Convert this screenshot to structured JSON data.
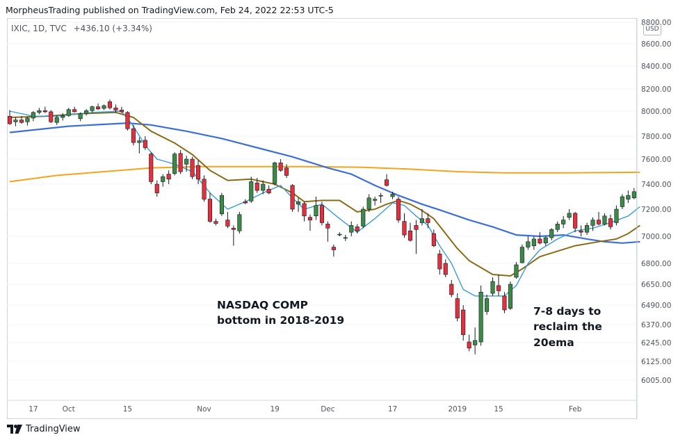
{
  "header": {
    "publisher_line": "MorpheusTrading published on TradingView.com, Feb 24, 2022 22:53 UTC-5"
  },
  "legend": {
    "symbol": "IXIC, 1D, TVC",
    "change": "+436.10 (+3.34%)",
    "currency_badge": "USD"
  },
  "annotations": {
    "left_note": "NASDAQ COMP\nbottom in 2018-2019",
    "right_note": "7-8 days to\nreclaim the\n20ema"
  },
  "footer": {
    "brand": "TradingView"
  },
  "colors": {
    "up_candle": "#3d8a47",
    "down_candle": "#e2303c",
    "ema_fast": "#3a9bd9",
    "ema_20": "#8a6b14",
    "ma_50": "#3c6fd6",
    "ma_200": "#f7a21b"
  },
  "chart_data": {
    "type": "candlestick",
    "price_axis": {
      "ticks": [
        6005,
        6125,
        6245,
        6370,
        6490,
        6650,
        6800,
        7000,
        7200,
        7400,
        7600,
        7800,
        8000,
        8200,
        8400,
        8600,
        8800
      ],
      "tick_labels": [
        "6005.00",
        "6125.00",
        "6245.00",
        "6370.00",
        "6490.00",
        "6650.00",
        "6800.00",
        "7000.00",
        "7200.00",
        "7400.00",
        "7600.00",
        "7800.00",
        "8000.00",
        "8200.00",
        "8400.00",
        "8600.00",
        "8800.00"
      ]
    },
    "time_axis": {
      "labels": [
        {
          "text": "17",
          "bar": 4
        },
        {
          "text": "Oct",
          "bar": 10
        },
        {
          "text": "15",
          "bar": 20
        },
        {
          "text": "Nov",
          "bar": 33
        },
        {
          "text": "19",
          "bar": 45
        },
        {
          "text": "Dec",
          "bar": 54
        },
        {
          "text": "17",
          "bar": 65
        },
        {
          "text": "2019",
          "bar": 76
        },
        {
          "text": "15",
          "bar": 83
        },
        {
          "text": "Feb",
          "bar": 96
        }
      ]
    },
    "candles": [
      {
        "o": 7960,
        "h": 8010,
        "l": 7890,
        "c": 7900
      },
      {
        "o": 7915,
        "h": 7950,
        "l": 7880,
        "c": 7930
      },
      {
        "o": 7930,
        "h": 7960,
        "l": 7900,
        "c": 7910
      },
      {
        "o": 7915,
        "h": 7955,
        "l": 7885,
        "c": 7945
      },
      {
        "o": 7945,
        "h": 8000,
        "l": 7920,
        "c": 7990
      },
      {
        "o": 7990,
        "h": 8030,
        "l": 7975,
        "c": 8005
      },
      {
        "o": 8005,
        "h": 8040,
        "l": 7985,
        "c": 7995
      },
      {
        "o": 7995,
        "h": 8010,
        "l": 7905,
        "c": 7915
      },
      {
        "o": 7910,
        "h": 7965,
        "l": 7890,
        "c": 7950
      },
      {
        "o": 7950,
        "h": 7985,
        "l": 7925,
        "c": 7965
      },
      {
        "o": 7965,
        "h": 8030,
        "l": 7955,
        "c": 8015
      },
      {
        "o": 8015,
        "h": 8040,
        "l": 7990,
        "c": 7995
      },
      {
        "o": 7940,
        "h": 7990,
        "l": 7920,
        "c": 7980
      },
      {
        "o": 7980,
        "h": 8020,
        "l": 7965,
        "c": 8005
      },
      {
        "o": 8005,
        "h": 8050,
        "l": 7990,
        "c": 8040
      },
      {
        "o": 8040,
        "h": 8070,
        "l": 8010,
        "c": 8020
      },
      {
        "o": 8025,
        "h": 8060,
        "l": 8010,
        "c": 8050
      },
      {
        "o": 8085,
        "h": 8105,
        "l": 8015,
        "c": 8030
      },
      {
        "o": 8030,
        "h": 8060,
        "l": 7990,
        "c": 8010
      },
      {
        "o": 8010,
        "h": 8040,
        "l": 7985,
        "c": 7995
      },
      {
        "o": 7990,
        "h": 8000,
        "l": 7845,
        "c": 7860
      },
      {
        "o": 7860,
        "h": 7890,
        "l": 7720,
        "c": 7745
      },
      {
        "o": 7745,
        "h": 7790,
        "l": 7650,
        "c": 7760
      },
      {
        "o": 7765,
        "h": 7800,
        "l": 7680,
        "c": 7700
      },
      {
        "o": 7645,
        "h": 7660,
        "l": 7400,
        "c": 7420
      },
      {
        "o": 7400,
        "h": 7430,
        "l": 7300,
        "c": 7330
      },
      {
        "o": 7420,
        "h": 7480,
        "l": 7380,
        "c": 7460
      },
      {
        "o": 7480,
        "h": 7510,
        "l": 7400,
        "c": 7440
      },
      {
        "o": 7485,
        "h": 7660,
        "l": 7470,
        "c": 7645
      },
      {
        "o": 7650,
        "h": 7680,
        "l": 7480,
        "c": 7500
      },
      {
        "o": 7560,
        "h": 7630,
        "l": 7500,
        "c": 7600
      },
      {
        "o": 7600,
        "h": 7620,
        "l": 7440,
        "c": 7460
      },
      {
        "o": 7550,
        "h": 7590,
        "l": 7400,
        "c": 7440
      },
      {
        "o": 7440,
        "h": 7470,
        "l": 7260,
        "c": 7280
      },
      {
        "o": 7280,
        "h": 7330,
        "l": 7100,
        "c": 7110
      },
      {
        "o": 7110,
        "h": 7130,
        "l": 7080,
        "c": 7095
      },
      {
        "o": 7165,
        "h": 7330,
        "l": 7150,
        "c": 7310
      },
      {
        "o": 7120,
        "h": 7180,
        "l": 7060,
        "c": 7075
      },
      {
        "o": 7060,
        "h": 7080,
        "l": 6930,
        "c": 7050
      },
      {
        "o": 7040,
        "h": 7180,
        "l": 7020,
        "c": 7160
      },
      {
        "o": 7260,
        "h": 7280,
        "l": 7240,
        "c": 7250
      },
      {
        "o": 7265,
        "h": 7460,
        "l": 7250,
        "c": 7420
      },
      {
        "o": 7410,
        "h": 7450,
        "l": 7330,
        "c": 7350
      },
      {
        "o": 7350,
        "h": 7430,
        "l": 7320,
        "c": 7400
      },
      {
        "o": 7360,
        "h": 7390,
        "l": 7320,
        "c": 7330
      },
      {
        "o": 7405,
        "h": 7580,
        "l": 7390,
        "c": 7570
      },
      {
        "o": 7570,
        "h": 7600,
        "l": 7500,
        "c": 7510
      },
      {
        "o": 7530,
        "h": 7560,
        "l": 7450,
        "c": 7470
      },
      {
        "o": 7390,
        "h": 7400,
        "l": 7180,
        "c": 7200
      },
      {
        "o": 7240,
        "h": 7290,
        "l": 7180,
        "c": 7260
      },
      {
        "o": 7245,
        "h": 7260,
        "l": 7110,
        "c": 7150
      },
      {
        "o": 7140,
        "h": 7160,
        "l": 7040,
        "c": 7120
      },
      {
        "o": 7150,
        "h": 7300,
        "l": 7120,
        "c": 7230
      },
      {
        "o": 7230,
        "h": 7260,
        "l": 7080,
        "c": 7100
      },
      {
        "o": 7090,
        "h": 7110,
        "l": 6960,
        "c": 7060
      },
      {
        "o": 6920,
        "h": 6940,
        "l": 6850,
        "c": 6900
      },
      {
        "o": 7010,
        "h": 7030,
        "l": 7000,
        "c": 7015
      },
      {
        "o": 6985,
        "h": 7010,
        "l": 6965,
        "c": 6990
      },
      {
        "o": 7030,
        "h": 7110,
        "l": 7000,
        "c": 7080
      },
      {
        "o": 7070,
        "h": 7090,
        "l": 7020,
        "c": 7040
      },
      {
        "o": 7075,
        "h": 7220,
        "l": 7060,
        "c": 7200
      },
      {
        "o": 7200,
        "h": 7320,
        "l": 7180,
        "c": 7290
      },
      {
        "o": 7270,
        "h": 7300,
        "l": 7230,
        "c": 7280
      },
      {
        "o": 7310,
        "h": 7330,
        "l": 7250,
        "c": 7310
      },
      {
        "o": 7435,
        "h": 7480,
        "l": 7380,
        "c": 7390
      },
      {
        "o": 7300,
        "h": 7340,
        "l": 7280,
        "c": 7320
      },
      {
        "o": 7280,
        "h": 7300,
        "l": 7100,
        "c": 7120
      },
      {
        "o": 7110,
        "h": 7170,
        "l": 6990,
        "c": 7010
      },
      {
        "o": 7040,
        "h": 7100,
        "l": 6960,
        "c": 6970
      },
      {
        "o": 7080,
        "h": 7120,
        "l": 6870,
        "c": 7050
      },
      {
        "o": 7100,
        "h": 7200,
        "l": 7080,
        "c": 7130
      },
      {
        "o": 7130,
        "h": 7170,
        "l": 7060,
        "c": 7100
      },
      {
        "o": 7020,
        "h": 7050,
        "l": 6920,
        "c": 6930
      },
      {
        "o": 6870,
        "h": 6900,
        "l": 6720,
        "c": 6760
      },
      {
        "o": 6800,
        "h": 6830,
        "l": 6700,
        "c": 6720
      },
      {
        "o": 6650,
        "h": 6680,
        "l": 6550,
        "c": 6570
      },
      {
        "o": 6540,
        "h": 6580,
        "l": 6390,
        "c": 6410
      },
      {
        "o": 6460,
        "h": 6490,
        "l": 6260,
        "c": 6300
      },
      {
        "o": 6250,
        "h": 6300,
        "l": 6190,
        "c": 6210
      },
      {
        "o": 6230,
        "h": 6350,
        "l": 6170,
        "c": 6260
      },
      {
        "o": 6250,
        "h": 6640,
        "l": 6225,
        "c": 6590
      },
      {
        "o": 6450,
        "h": 6570,
        "l": 6430,
        "c": 6540
      },
      {
        "o": 6580,
        "h": 6700,
        "l": 6560,
        "c": 6670
      },
      {
        "o": 6640,
        "h": 6720,
        "l": 6560,
        "c": 6600
      },
      {
        "o": 6560,
        "h": 6590,
        "l": 6440,
        "c": 6460
      },
      {
        "o": 6470,
        "h": 6670,
        "l": 6460,
        "c": 6650
      },
      {
        "o": 6700,
        "h": 6810,
        "l": 6690,
        "c": 6790
      },
      {
        "o": 6805,
        "h": 6940,
        "l": 6800,
        "c": 6920
      },
      {
        "o": 6920,
        "h": 7000,
        "l": 6900,
        "c": 6960
      },
      {
        "o": 6930,
        "h": 7000,
        "l": 6900,
        "c": 6980
      },
      {
        "o": 6980,
        "h": 7030,
        "l": 6940,
        "c": 6950
      },
      {
        "o": 6950,
        "h": 7000,
        "l": 6930,
        "c": 6990
      },
      {
        "o": 6990,
        "h": 7060,
        "l": 6970,
        "c": 7050
      },
      {
        "o": 7050,
        "h": 7110,
        "l": 7030,
        "c": 7090
      },
      {
        "o": 7090,
        "h": 7150,
        "l": 7060,
        "c": 7120
      },
      {
        "o": 7140,
        "h": 7200,
        "l": 7120,
        "c": 7170
      },
      {
        "o": 7170,
        "h": 7180,
        "l": 7030,
        "c": 7060
      },
      {
        "o": 7040,
        "h": 7080,
        "l": 7000,
        "c": 7030
      },
      {
        "o": 7030,
        "h": 7100,
        "l": 7010,
        "c": 7080
      },
      {
        "o": 7080,
        "h": 7140,
        "l": 7040,
        "c": 7120
      },
      {
        "o": 7120,
        "h": 7180,
        "l": 7080,
        "c": 7090
      },
      {
        "o": 7090,
        "h": 7170,
        "l": 7080,
        "c": 7150
      },
      {
        "o": 7130,
        "h": 7160,
        "l": 7050,
        "c": 7070
      },
      {
        "o": 7100,
        "h": 7230,
        "l": 7080,
        "c": 7200
      },
      {
        "o": 7220,
        "h": 7320,
        "l": 7200,
        "c": 7300
      },
      {
        "o": 7280,
        "h": 7350,
        "l": 7250,
        "c": 7310
      },
      {
        "o": 7290,
        "h": 7370,
        "l": 7280,
        "c": 7340
      }
    ],
    "series": [
      {
        "name": "",
        "color_key": "ema_fast",
        "points": [
          [
            0,
            8000
          ],
          [
            4,
            7960
          ],
          [
            8,
            7960
          ],
          [
            14,
            7990
          ],
          [
            19,
            8000
          ],
          [
            21,
            7880
          ],
          [
            23,
            7720
          ],
          [
            25,
            7600
          ],
          [
            28,
            7560
          ],
          [
            31,
            7500
          ],
          [
            34,
            7330
          ],
          [
            37,
            7200
          ],
          [
            40,
            7260
          ],
          [
            43,
            7330
          ],
          [
            46,
            7390
          ],
          [
            48,
            7290
          ],
          [
            50,
            7200
          ],
          [
            53,
            7240
          ],
          [
            56,
            7130
          ],
          [
            59,
            7030
          ],
          [
            62,
            7130
          ],
          [
            65,
            7250
          ],
          [
            67,
            7230
          ],
          [
            69,
            7150
          ],
          [
            71,
            7080
          ],
          [
            73,
            6930
          ],
          [
            75,
            6800
          ],
          [
            77,
            6610
          ],
          [
            79,
            6560
          ],
          [
            81,
            6560
          ],
          [
            84,
            6560
          ],
          [
            86,
            6640
          ],
          [
            88,
            6800
          ],
          [
            90,
            6900
          ],
          [
            93,
            6980
          ],
          [
            96,
            7040
          ],
          [
            99,
            7060
          ],
          [
            102,
            7100
          ],
          [
            105,
            7150
          ],
          [
            107,
            7220
          ]
        ]
      },
      {
        "name": "",
        "color_key": "ema_20",
        "points": [
          [
            0,
            7950
          ],
          [
            6,
            7960
          ],
          [
            12,
            7980
          ],
          [
            18,
            7990
          ],
          [
            21,
            7950
          ],
          [
            24,
            7840
          ],
          [
            28,
            7740
          ],
          [
            31,
            7640
          ],
          [
            34,
            7510
          ],
          [
            37,
            7430
          ],
          [
            41,
            7440
          ],
          [
            45,
            7400
          ],
          [
            48,
            7330
          ],
          [
            50,
            7260
          ],
          [
            53,
            7270
          ],
          [
            56,
            7270
          ],
          [
            59,
            7180
          ],
          [
            62,
            7200
          ],
          [
            64,
            7240
          ],
          [
            66,
            7270
          ],
          [
            68,
            7240
          ],
          [
            70,
            7190
          ],
          [
            72,
            7130
          ],
          [
            74,
            7020
          ],
          [
            76,
            6910
          ],
          [
            78,
            6820
          ],
          [
            80,
            6770
          ],
          [
            82,
            6720
          ],
          [
            85,
            6710
          ],
          [
            87,
            6760
          ],
          [
            90,
            6850
          ],
          [
            93,
            6890
          ],
          [
            96,
            6930
          ],
          [
            100,
            6960
          ],
          [
            103,
            6980
          ],
          [
            105,
            7020
          ],
          [
            107,
            7080
          ]
        ]
      },
      {
        "name": "",
        "color_key": "ma_50",
        "points": [
          [
            0,
            7830
          ],
          [
            10,
            7880
          ],
          [
            20,
            7905
          ],
          [
            24,
            7890
          ],
          [
            30,
            7840
          ],
          [
            36,
            7780
          ],
          [
            42,
            7700
          ],
          [
            48,
            7620
          ],
          [
            54,
            7530
          ],
          [
            58,
            7480
          ],
          [
            62,
            7390
          ],
          [
            66,
            7310
          ],
          [
            70,
            7240
          ],
          [
            74,
            7180
          ],
          [
            78,
            7120
          ],
          [
            82,
            7070
          ],
          [
            86,
            7010
          ],
          [
            90,
            7000
          ],
          [
            94,
            7010
          ],
          [
            98,
            6980
          ],
          [
            101,
            6960
          ],
          [
            104,
            6950
          ],
          [
            107,
            6960
          ]
        ]
      },
      {
        "name": "",
        "color_key": "ma_200",
        "points": [
          [
            0,
            7420
          ],
          [
            8,
            7470
          ],
          [
            16,
            7500
          ],
          [
            24,
            7530
          ],
          [
            32,
            7540
          ],
          [
            40,
            7540
          ],
          [
            50,
            7540
          ],
          [
            60,
            7535
          ],
          [
            68,
            7520
          ],
          [
            76,
            7500
          ],
          [
            84,
            7490
          ],
          [
            94,
            7490
          ],
          [
            107,
            7495
          ]
        ]
      }
    ]
  }
}
